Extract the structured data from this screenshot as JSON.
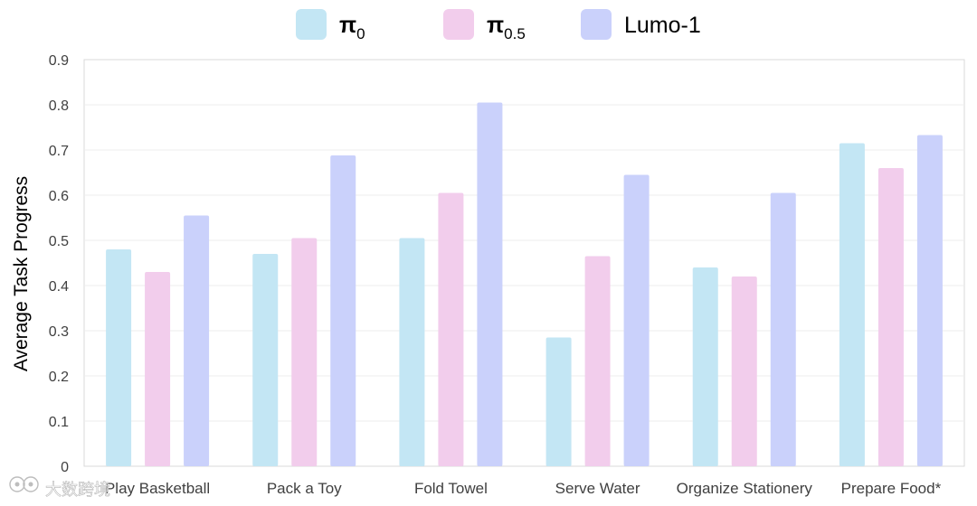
{
  "chart_data": {
    "type": "bar",
    "categories": [
      "Play Basketball",
      "Pack a Toy",
      "Fold Towel",
      "Serve Water",
      "Organize Stationery",
      "Prepare Food*"
    ],
    "series": [
      {
        "name": "π",
        "subscript": "0",
        "color": "#c3e6f4",
        "values": [
          0.48,
          0.47,
          0.505,
          0.285,
          0.44,
          0.715
        ]
      },
      {
        "name": "π",
        "subscript": "0.5",
        "color": "#f2cdec",
        "values": [
          0.43,
          0.505,
          0.605,
          0.465,
          0.42,
          0.66
        ]
      },
      {
        "name": "Lumo-1",
        "subscript": "",
        "color": "#cad1fb",
        "values": [
          0.555,
          0.688,
          0.805,
          0.645,
          0.605,
          0.733
        ]
      }
    ],
    "ylabel": "Average Task Progress",
    "xlabel": "",
    "ylim": [
      0,
      0.9
    ],
    "yticks": [
      "0",
      "0.1",
      "0.2",
      "0.3",
      "0.4",
      "0.5",
      "0.6",
      "0.7",
      "0.8",
      "0.9"
    ],
    "legend_position": "top-center",
    "grid": true
  },
  "watermark": {
    "text": "大数跨境"
  }
}
